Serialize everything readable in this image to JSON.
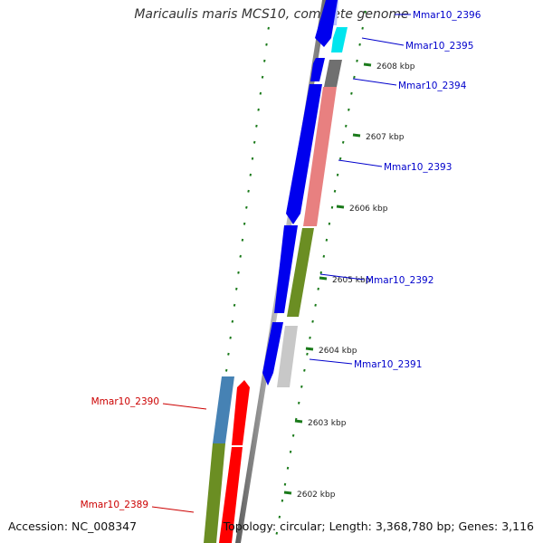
{
  "title": "Maricaulis maris MCS10, complete genome",
  "footer": {
    "accession": "Accession: NC_008347",
    "topology": "Topology: circular; Length: 3,368,780 bp; Genes: 3,116"
  },
  "ruler": {
    "ticks": [
      {
        "label": "2602 kbp"
      },
      {
        "label": "2603 kbp"
      },
      {
        "label": "2604 kbp"
      },
      {
        "label": "2605 kbp"
      },
      {
        "label": "2606 kbp"
      },
      {
        "label": "2607 kbp"
      },
      {
        "label": "2608 kbp"
      }
    ]
  },
  "genes": {
    "forward_labels": [
      {
        "name": "Mmar10_2396"
      },
      {
        "name": "Mmar10_2395"
      },
      {
        "name": "Mmar10_2394"
      },
      {
        "name": "Mmar10_2393"
      },
      {
        "name": "Mmar10_2392"
      },
      {
        "name": "Mmar10_2391"
      }
    ],
    "reverse_labels": [
      {
        "name": "Mmar10_2390"
      },
      {
        "name": "Mmar10_2389"
      }
    ]
  },
  "colors": {
    "forward_label": "#0000cc",
    "reverse_label": "#cc0000",
    "tick": "#1a7a1a",
    "backbone": "#888888",
    "cds_blue": "#0000ee",
    "cds_red": "#ff0000",
    "cds_pink": "#e88080",
    "cds_olive": "#6b8e23",
    "cds_cyan": "#00e5ee",
    "cds_grey": "#c8c8c8",
    "cds_darkgrey": "#707070",
    "cds_steel": "#4682b4"
  }
}
